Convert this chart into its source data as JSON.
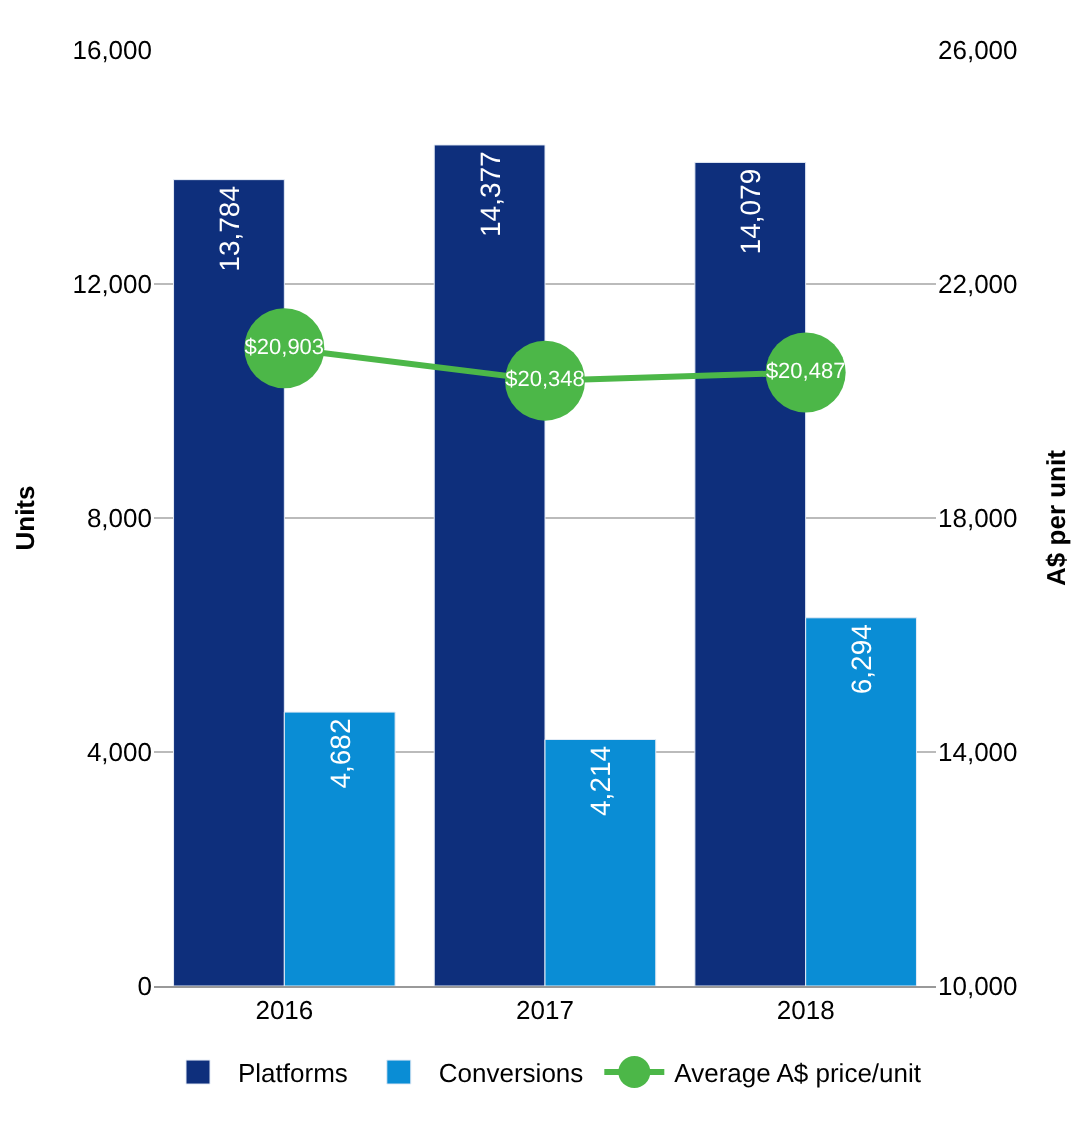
{
  "chart_data": {
    "type": "bar",
    "categories": [
      "2016",
      "2017",
      "2018"
    ],
    "ylabel": "Units",
    "y2label": "A$ per unit",
    "series": [
      {
        "name": "Platforms",
        "color": "#0e2f7c",
        "values": [
          13784,
          14377,
          14079
        ],
        "value_labels": [
          "13,784",
          "14,377",
          "14,079"
        ]
      },
      {
        "name": "Conversions",
        "color": "#0a8dd5",
        "values": [
          4682,
          4214,
          6294
        ],
        "value_labels": [
          "4,682",
          "4,214",
          "6,294"
        ]
      },
      {
        "name": "Average A$ price/unit",
        "type": "line",
        "axis": "y2",
        "color": "#4cb748",
        "marker": "circle",
        "values": [
          20903,
          20348,
          20487
        ],
        "value_labels": [
          "$20,903",
          "$20,348",
          "$20,487"
        ]
      }
    ],
    "ylim": [
      0,
      16000
    ],
    "yticks": [
      {
        "value": 0,
        "label": "0"
      },
      {
        "value": 4000,
        "label": "4,000"
      },
      {
        "value": 8000,
        "label": "8,000"
      },
      {
        "value": 12000,
        "label": "12,000"
      },
      {
        "value": 16000,
        "label": "16,000"
      }
    ],
    "y2lim": [
      10000,
      26000
    ],
    "y2ticks": [
      {
        "value": 10000,
        "label": "10,000"
      },
      {
        "value": 14000,
        "label": "14,000"
      },
      {
        "value": 18000,
        "label": "18,000"
      },
      {
        "value": 22000,
        "label": "22,000"
      },
      {
        "value": 26000,
        "label": "26,000"
      }
    ],
    "grid": "y",
    "legend": "bottom"
  }
}
